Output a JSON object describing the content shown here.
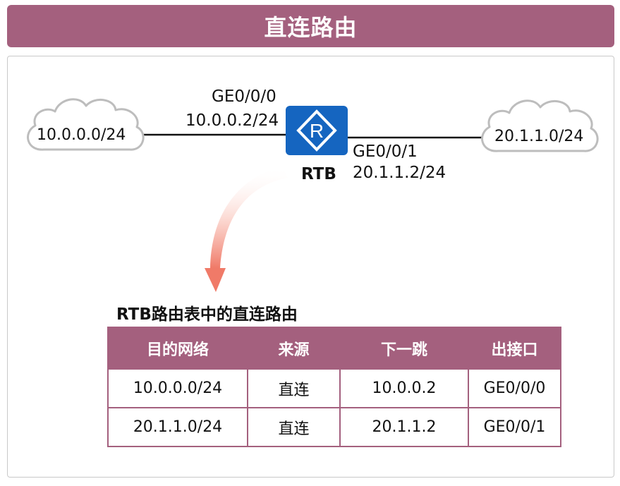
{
  "title": "直连路由",
  "router": {
    "name": "RTB",
    "icon": "router-icon"
  },
  "left_network": "10.0.0.0/24",
  "right_network": "20.1.1.0/24",
  "left_interface": {
    "name": "GE0/0/0",
    "ip": "10.0.0.2/24"
  },
  "right_interface": {
    "name": "GE0/0/1",
    "ip": "20.1.1.2/24"
  },
  "table": {
    "caption": "RTB路由表中的直连路由",
    "headers": [
      "目的网络",
      "来源",
      "下一跳",
      "出接口"
    ],
    "rows": [
      [
        "10.0.0.0/24",
        "直连",
        "10.0.0.2",
        "GE0/0/0"
      ],
      [
        "20.1.1.0/24",
        "直连",
        "20.1.1.2",
        "GE0/0/1"
      ]
    ]
  },
  "colors": {
    "accent": "#a4607e",
    "router": "#1565c0",
    "arrow": "#f08070"
  }
}
